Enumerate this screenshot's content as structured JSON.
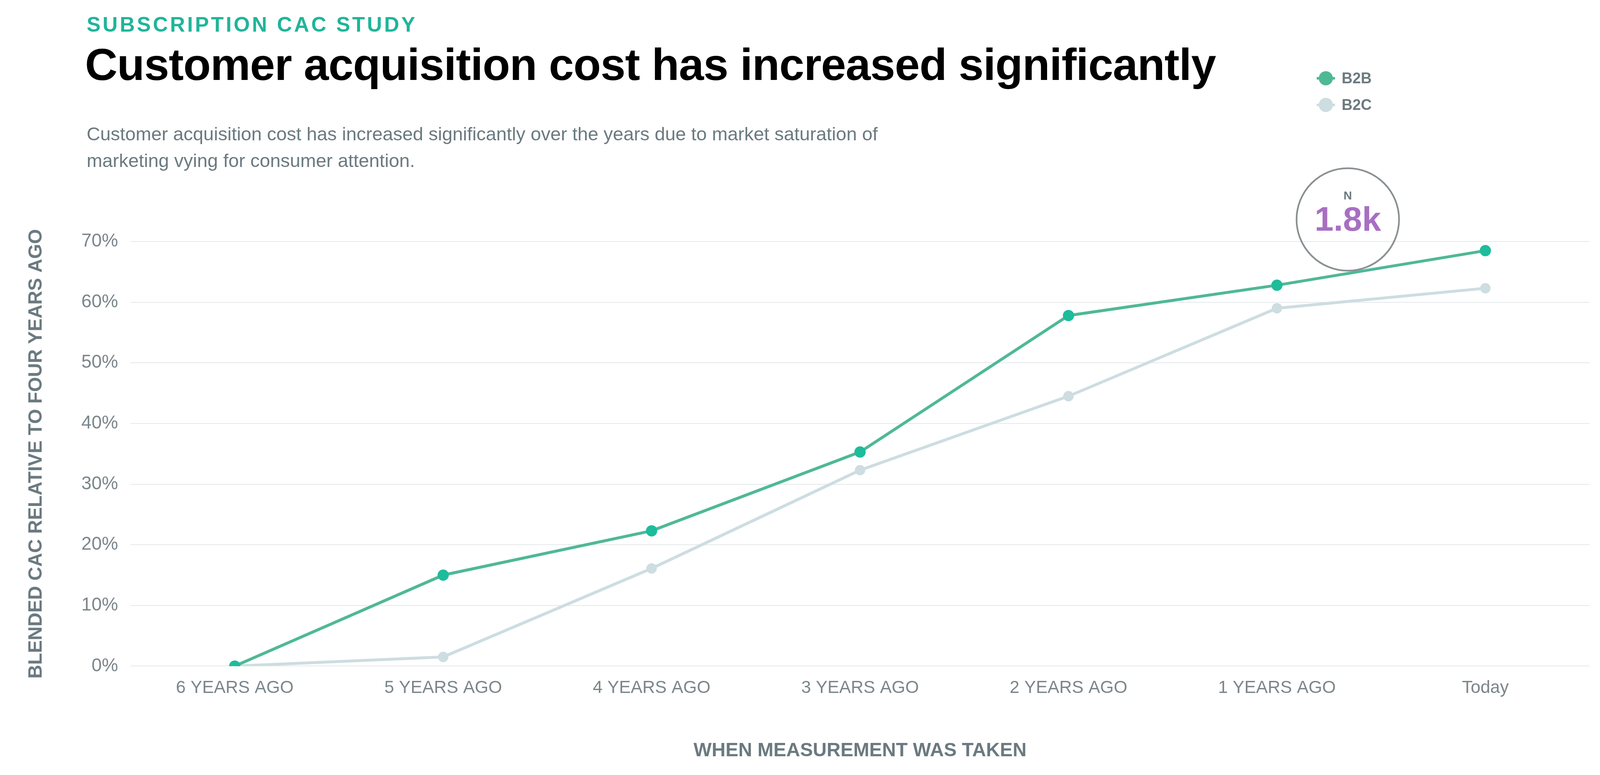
{
  "chart_data": {
    "type": "line",
    "kicker": "SUBSCRIPTION CAC STUDY",
    "title": "Customer acquisition cost has increased significantly",
    "subtitle": [
      "Customer acquisition cost has increased significantly over the years due to market saturation of",
      "marketing vying for consumer attention."
    ],
    "x_label": "WHEN MEASUREMENT WAS TAKEN",
    "y_label": "BLENDED CAC RELATIVE TO FOUR YEARS AGO",
    "categories": [
      "6 YEARS AGO",
      "5 YEARS AGO",
      "4 YEARS AGO",
      "3 YEARS AGO",
      "2 YEARS AGO",
      "1 YEARS AGO",
      "Today"
    ],
    "series": [
      {
        "name": "B2B",
        "color": "#4fb897",
        "values": [
          0,
          15,
          22.3,
          35.3,
          57.8,
          62.8,
          68.5
        ]
      },
      {
        "name": "B2C",
        "color": "#cddde1",
        "values": [
          0,
          1.5,
          16.1,
          32.3,
          44.5,
          59,
          62.3
        ]
      }
    ],
    "ylim": [
      0,
      70
    ],
    "yticks": [
      {
        "value": 0,
        "label": "0%"
      },
      {
        "value": 10,
        "label": "10%"
      },
      {
        "value": 20,
        "label": "20%"
      },
      {
        "value": 30,
        "label": "30%"
      },
      {
        "value": 40,
        "label": "40%"
      },
      {
        "value": 50,
        "label": "50%"
      },
      {
        "value": 60,
        "label": "60%"
      },
      {
        "value": 70,
        "label": "70%"
      }
    ],
    "grid": true,
    "legend": "top-right",
    "marker": "circle",
    "annotation": {
      "title": "N",
      "text": "1.8k"
    }
  }
}
